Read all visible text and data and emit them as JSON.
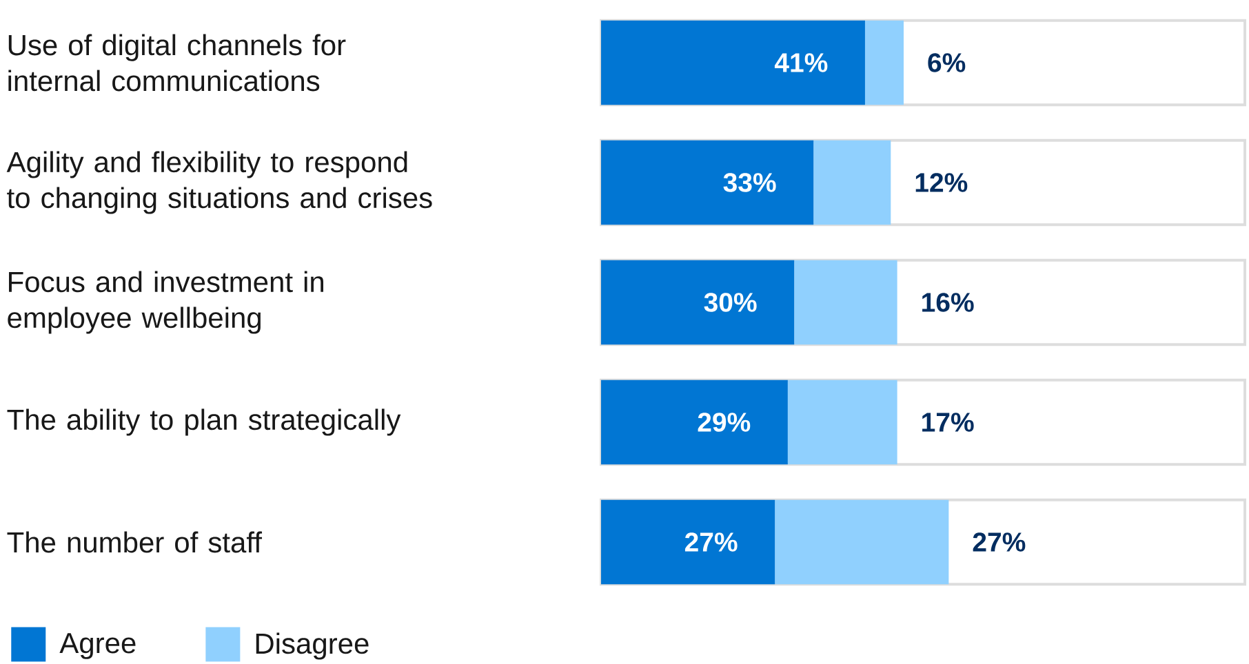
{
  "chart_data": {
    "type": "bar",
    "orientation": "horizontal",
    "stacked": true,
    "categories": [
      "Use of digital channels for internal communications",
      "Agility and flexibility to respond to changing situations and crises",
      "Focus and investment in employee wellbeing",
      "The ability to plan strategically",
      "The number of staff"
    ],
    "series": [
      {
        "name": "Agree",
        "color": "#0176d3",
        "values": [
          41,
          33,
          30,
          29,
          27
        ],
        "value_labels": [
          "41%",
          "33%",
          "30%",
          "29%",
          "27%"
        ]
      },
      {
        "name": "Disagree",
        "color": "#90d0fe",
        "values": [
          6,
          12,
          16,
          17,
          27
        ],
        "value_labels": [
          "6%",
          "12%",
          "16%",
          "17%",
          "27%"
        ]
      }
    ],
    "xlim": [
      0,
      100
    ],
    "tick_labels": "y",
    "legend": "bottom left"
  }
}
